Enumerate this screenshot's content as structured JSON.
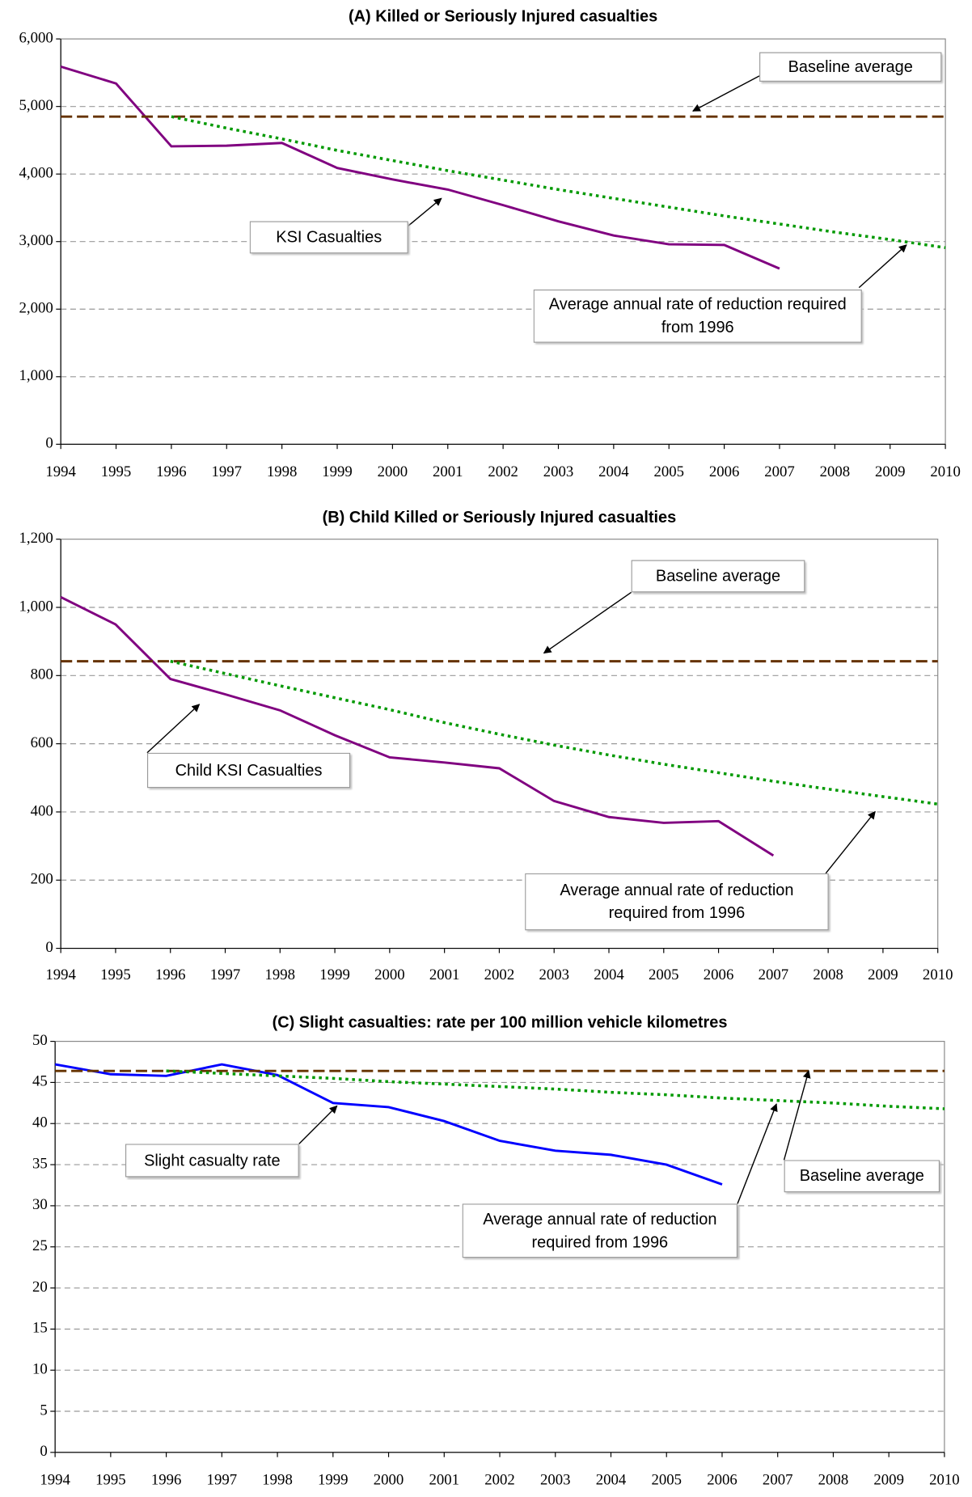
{
  "chart_data": [
    {
      "type": "line",
      "title": "(A) Killed or Seriously Injured casualties",
      "x": [
        1994,
        1995,
        1996,
        1997,
        1998,
        1999,
        2000,
        2001,
        2002,
        2003,
        2004,
        2005,
        2006,
        2007,
        2008,
        2009,
        2010
      ],
      "xlim": [
        1994,
        2010
      ],
      "xticks": [
        1994,
        1995,
        1996,
        1997,
        1998,
        1999,
        2000,
        2001,
        2002,
        2003,
        2004,
        2005,
        2006,
        2007,
        2008,
        2009,
        2010
      ],
      "ylim": [
        0,
        6000
      ],
      "yticks": [
        0,
        {
          "value": 1000,
          "label": "1,000"
        },
        {
          "value": 2000,
          "label": "2,000"
        },
        {
          "value": 3000,
          "label": "3,000"
        },
        {
          "value": 4000,
          "label": "4,000"
        },
        {
          "value": 5000,
          "label": "5,000"
        },
        {
          "value": 6000,
          "label": "6,000"
        }
      ],
      "grid": true,
      "series": [
        {
          "name": "KSI Casualties",
          "color": "#800080",
          "dash": "solid",
          "values": [
            5590,
            5340,
            4410,
            4420,
            4460,
            4090,
            3920,
            3770,
            3540,
            3300,
            3090,
            2960,
            2950,
            2600,
            null,
            null,
            null
          ]
        },
        {
          "name": "Baseline average",
          "color": "#663300",
          "dash": "dashed",
          "values": [
            4850,
            4850,
            4850,
            4850,
            4850,
            4850,
            4850,
            4850,
            4850,
            4850,
            4850,
            4850,
            4850,
            4850,
            4850,
            4850,
            4850
          ]
        },
        {
          "name": "Average annual rate of reduction required from 1996",
          "color": "#009900",
          "dash": "dotted",
          "values": [
            null,
            null,
            4850,
            4680,
            4520,
            4350,
            4200,
            4050,
            3910,
            3770,
            3640,
            3510,
            3380,
            3260,
            3140,
            3030,
            2910
          ]
        }
      ]
    },
    {
      "type": "line",
      "title": "(B) Child Killed or Seriously Injured casualties",
      "x": [
        1994,
        1995,
        1996,
        1997,
        1998,
        1999,
        2000,
        2001,
        2002,
        2003,
        2004,
        2005,
        2006,
        2007,
        2008,
        2009,
        2010
      ],
      "xlim": [
        1994,
        2010
      ],
      "xticks": [
        1994,
        1995,
        1996,
        1997,
        1998,
        1999,
        2000,
        2001,
        2002,
        2003,
        2004,
        2005,
        2006,
        2007,
        2008,
        2009,
        2010
      ],
      "ylim": [
        0,
        1200
      ],
      "yticks": [
        0,
        200,
        400,
        600,
        800,
        {
          "value": 1000,
          "label": "1,000"
        },
        {
          "value": 1200,
          "label": "1,200"
        }
      ],
      "grid": true,
      "series": [
        {
          "name": "Child KSI Casualties",
          "color": "#800080",
          "dash": "solid",
          "values": [
            1030,
            950,
            790,
            745,
            698,
            625,
            560,
            545,
            528,
            432,
            385,
            368,
            373,
            272,
            null,
            null,
            null
          ]
        },
        {
          "name": "Baseline average",
          "color": "#663300",
          "dash": "dashed",
          "values": [
            842,
            842,
            842,
            842,
            842,
            842,
            842,
            842,
            842,
            842,
            842,
            842,
            842,
            842,
            842,
            842,
            842
          ]
        },
        {
          "name": "Average annual rate of reduction required from 1996",
          "color": "#009900",
          "dash": "dotted",
          "values": [
            null,
            null,
            842,
            806,
            770,
            735,
            700,
            662,
            628,
            596,
            567,
            540,
            515,
            490,
            467,
            445,
            423
          ]
        }
      ]
    },
    {
      "type": "line",
      "title": "(C) Slight casualties: rate per 100 million vehicle kilometres",
      "x": [
        1994,
        1995,
        1996,
        1997,
        1998,
        1999,
        2000,
        2001,
        2002,
        2003,
        2004,
        2005,
        2006,
        2007,
        2008,
        2009,
        2010
      ],
      "xlim": [
        1994,
        2010
      ],
      "xticks": [
        1994,
        1995,
        1996,
        1997,
        1998,
        1999,
        2000,
        2001,
        2002,
        2003,
        2004,
        2005,
        2006,
        2007,
        2008,
        2009,
        2010
      ],
      "ylim": [
        0,
        50
      ],
      "yticks": [
        0,
        5,
        10,
        15,
        20,
        25,
        30,
        35,
        40,
        45,
        50
      ],
      "grid": true,
      "series": [
        {
          "name": "Slight casualty rate",
          "color": "#0000ff",
          "dash": "solid",
          "values": [
            47.2,
            46.0,
            45.8,
            47.2,
            45.9,
            42.5,
            42.0,
            40.3,
            37.9,
            36.7,
            36.2,
            35.0,
            32.6,
            null,
            null,
            null,
            null
          ]
        },
        {
          "name": "Baseline average",
          "color": "#663300",
          "dash": "dashed",
          "values": [
            46.4,
            46.4,
            46.4,
            46.4,
            46.4,
            46.4,
            46.4,
            46.4,
            46.4,
            46.4,
            46.4,
            46.4,
            46.4,
            46.4,
            46.4,
            46.4,
            46.4
          ]
        },
        {
          "name": "Average annual rate of reduction required from 1996",
          "color": "#009900",
          "dash": "dotted",
          "values": [
            null,
            null,
            46.4,
            46.1,
            45.8,
            45.5,
            45.1,
            44.8,
            44.5,
            44.2,
            43.8,
            43.5,
            43.1,
            42.8,
            42.5,
            42.1,
            41.8
          ]
        }
      ]
    }
  ]
}
